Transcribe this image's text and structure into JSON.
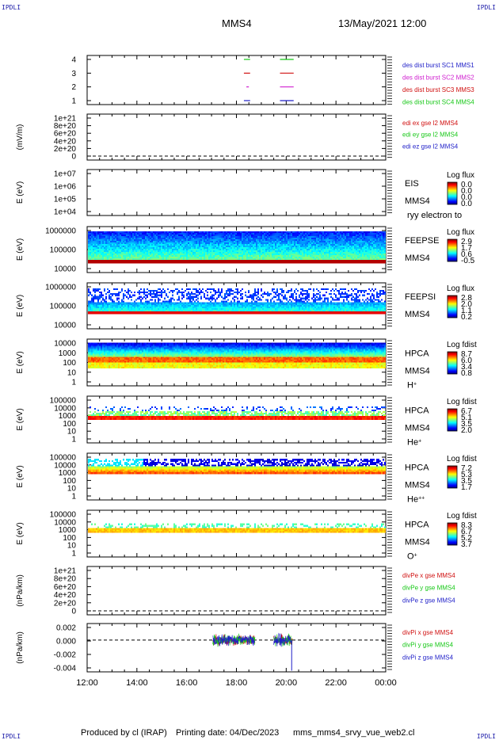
{
  "header": {
    "spacecraft": "MMS4",
    "datetime": "13/May/2021 12:00",
    "corner_tag": "IPDLI"
  },
  "footer": {
    "produced_by": "Produced by cl (IRAP)",
    "printing_date": "Printing date: 04/Dec/2023",
    "script_name": "mms_mms4_srvy_vue_web2.cl"
  },
  "colors": {
    "blue": "#1f1fc8",
    "magenta": "#d020d0",
    "red": "#d01010",
    "green": "#18c818",
    "dashed": "#000000"
  },
  "chart_data": [
    {
      "type": "line",
      "panel": "burst",
      "y_ticks": [
        "4",
        "3",
        "2",
        "1"
      ],
      "ylim": [
        0.5,
        4.5
      ],
      "legend": [
        {
          "label": "des dist burst SC1 MMS1",
          "color": "#1f1fc8"
        },
        {
          "label": "des dist burst SC2 MMS2",
          "color": "#d020d0"
        },
        {
          "label": "des dist burst SC3 MMS3",
          "color": "#d01010"
        },
        {
          "label": "des dist burst SC4 MMS4",
          "color": "#18c818"
        }
      ],
      "segments": [
        {
          "level": 4,
          "color": "#18c818",
          "from": 18.3,
          "to": 18.55
        },
        {
          "level": 4,
          "color": "#18c818",
          "from": 19.75,
          "to": 20.3
        },
        {
          "level": 3,
          "color": "#d01010",
          "from": 18.3,
          "to": 18.55
        },
        {
          "level": 3,
          "color": "#d01010",
          "from": 19.75,
          "to": 20.3
        },
        {
          "level": 2,
          "color": "#d020d0",
          "from": 18.4,
          "to": 18.5
        },
        {
          "level": 2,
          "color": "#d020d0",
          "from": 19.75,
          "to": 20.3
        },
        {
          "level": 1,
          "color": "#1f1fc8",
          "from": 18.3,
          "to": 18.55
        },
        {
          "level": 1,
          "color": "#1f1fc8",
          "from": 19.75,
          "to": 20.3
        }
      ]
    },
    {
      "type": "line",
      "panel": "edi",
      "ylabel": "(mV/m)",
      "y_ticks": [
        "1e+21",
        "8e+20",
        "6e+20",
        "4e+20",
        "2e+20",
        "0"
      ],
      "legend": [
        {
          "label": "edi ex gse l2 MMS4",
          "color": "#d01010"
        },
        {
          "label": "edi ey gse l2 MMS4",
          "color": "#18c818"
        },
        {
          "label": "edi ez gse l2 MMS4",
          "color": "#1f1fc8"
        }
      ]
    },
    {
      "type": "heatmap",
      "panel": "eis",
      "ylabel": "E (eV)",
      "y_ticks": [
        "1e+07",
        "1e+06",
        "1e+05",
        "1e+04"
      ],
      "instrument": "EIS",
      "spacecraft": "MMS4",
      "species": "ryy electron to",
      "colorbar_title": "Log flux",
      "colorbar_ticks": [
        "0.0",
        "0.0",
        "0.0",
        "0.0"
      ]
    },
    {
      "type": "heatmap",
      "panel": "feepse",
      "ylabel": "E (eV)",
      "y_ticks": [
        "1000000",
        "100000",
        "10000"
      ],
      "instrument": "FEEPSE",
      "spacecraft": "MMS4",
      "colorbar_title": "Log flux",
      "colorbar_ticks": [
        "2.9",
        "1.7",
        "0.6",
        "-0.5"
      ]
    },
    {
      "type": "heatmap",
      "panel": "feepsi",
      "ylabel": "E (eV)",
      "y_ticks": [
        "1000000",
        "100000",
        "10000"
      ],
      "instrument": "FEEPSI",
      "spacecraft": "MMS4",
      "colorbar_title": "Log flux",
      "colorbar_ticks": [
        "2.8",
        "2.0",
        "1.1",
        "0.2"
      ]
    },
    {
      "type": "heatmap",
      "panel": "hpca_h",
      "ylabel": "E (eV)",
      "y_ticks": [
        "10000",
        "1000",
        "100",
        "10",
        "1"
      ],
      "instrument": "HPCA",
      "spacecraft": "MMS4",
      "species": "H",
      "species_sup": "+",
      "colorbar_title": "Log fdist",
      "colorbar_ticks": [
        "8.7",
        "6.0",
        "3.4",
        "0.8"
      ]
    },
    {
      "type": "heatmap",
      "panel": "hpca_he1",
      "ylabel": "E (eV)",
      "y_ticks": [
        "100000",
        "10000",
        "1000",
        "100",
        "10",
        "1"
      ],
      "instrument": "HPCA",
      "spacecraft": "MMS4",
      "species": "He",
      "species_sup": "+",
      "colorbar_title": "Log fdist",
      "colorbar_ticks": [
        "6.7",
        "5.1",
        "3.5",
        "2.0"
      ]
    },
    {
      "type": "heatmap",
      "panel": "hpca_he2",
      "ylabel": "E (eV)",
      "y_ticks": [
        "100000",
        "10000",
        "1000",
        "100",
        "10",
        "1"
      ],
      "instrument": "HPCA",
      "spacecraft": "MMS4",
      "species": "He",
      "species_sup": "++",
      "colorbar_title": "Log fdist",
      "colorbar_ticks": [
        "7.2",
        "5.3",
        "3.5",
        "1.7"
      ]
    },
    {
      "type": "heatmap",
      "panel": "hpca_o",
      "ylabel": "E (eV)",
      "y_ticks": [
        "100000",
        "10000",
        "1000",
        "100",
        "10",
        "1"
      ],
      "instrument": "HPCA",
      "spacecraft": "MMS4",
      "species": "O",
      "species_sup": "+",
      "colorbar_title": "Log fdist",
      "colorbar_ticks": [
        "8.3",
        "6.7",
        "5.2",
        "3.7"
      ]
    },
    {
      "type": "line",
      "panel": "divpe",
      "ylabel": "(nPa/km)",
      "y_ticks": [
        "1e+21",
        "8e+20",
        "6e+20",
        "4e+20",
        "2e+20",
        "0"
      ],
      "legend": [
        {
          "label": "divPe x gse MMS4",
          "color": "#d01010"
        },
        {
          "label": "divPe y gse MMS4",
          "color": "#18c818"
        },
        {
          "label": "divPe z gse MMS4",
          "color": "#1f1fc8"
        }
      ]
    },
    {
      "type": "line",
      "panel": "divpi",
      "ylabel": "(nPa/km)",
      "y_ticks": [
        "0.002",
        "0.000",
        "-0.002",
        "-0.004"
      ],
      "ylim": [
        -0.0052,
        0.0027
      ],
      "legend": [
        {
          "label": "divPi x gse MMS4",
          "color": "#d01010"
        },
        {
          "label": "divPi y gse MMS4",
          "color": "#18c818"
        },
        {
          "label": "divPi z gse MMS4",
          "color": "#1f1fc8"
        }
      ],
      "bursts": [
        {
          "from": 17.05,
          "to": 18.75,
          "amplitude": 0.0008
        },
        {
          "from": 19.5,
          "to": 20.25,
          "amplitude": 0.0009
        }
      ],
      "dip": {
        "at": 20.22,
        "value": -0.005
      }
    }
  ],
  "x_axis": {
    "ticks": [
      "12:00",
      "14:00",
      "16:00",
      "18:00",
      "20:00",
      "22:00",
      "00:00"
    ],
    "range_hours": [
      12,
      24
    ]
  }
}
